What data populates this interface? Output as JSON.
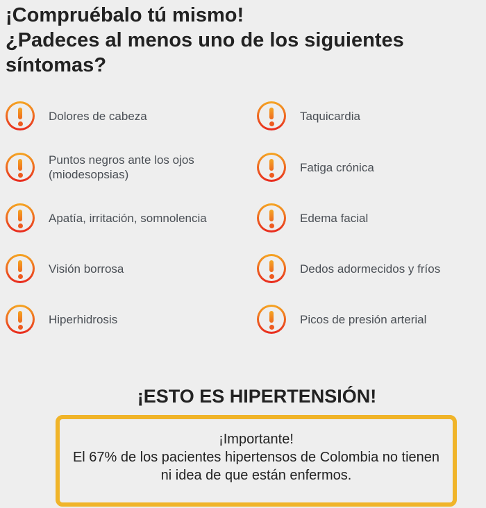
{
  "heading": {
    "line1": "¡Compruébalo tú mismo!",
    "line2": "¿Padeces al menos uno de los siguientes síntomas?"
  },
  "symptoms_left": [
    "Dolores de cabeza",
    "Puntos negros ante los ojos (miodesopsias)",
    "Apatía, irritación, somnolencia",
    "Visión borrosa",
    "Hiperhidrosis"
  ],
  "symptoms_right": [
    "Taquicardia",
    "Fatiga crónica",
    "Edema facial",
    "Dedos adormecidos y fríos",
    "Picos de presión arterial"
  ],
  "icon": "exclamation-circle-icon",
  "colors": {
    "accent": "#f0b429",
    "icon_top": "#f5a623",
    "icon_bottom": "#e8281e"
  },
  "verdict": "¡ESTO ES HIPERTENSIÓN!",
  "notice": {
    "title": "¡Importante!",
    "text": "El 67% de los pacientes hipertensos de Colombia no tienen ni idea de que están enfermos."
  }
}
